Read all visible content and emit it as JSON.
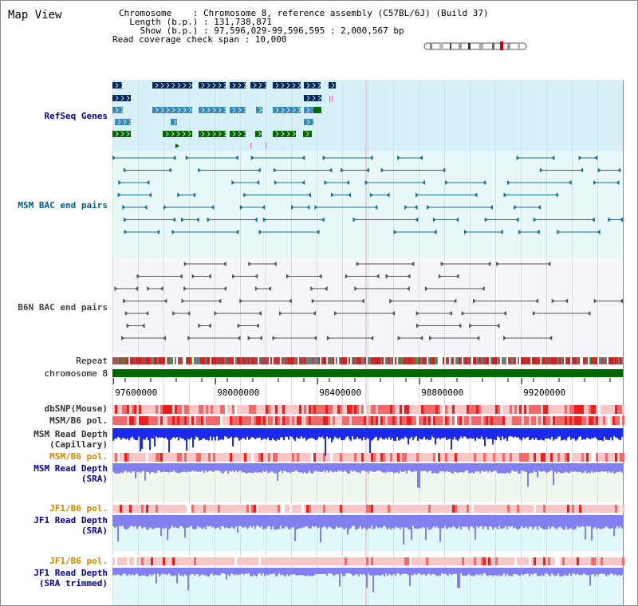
{
  "title": "Map View",
  "info": {
    "chromosome_line": "Chromosome    : Chromosome 8, reference assembly (C57BL/6J) (Build 37)",
    "length_line": "  Length (b.p.) : 131,738,871",
    "show_line": "    Show (b.p.) : 97,596,029-99,596,595 : 2,000,567 bp",
    "coverage_line": "Read coverage check span : 10,000"
  },
  "view": {
    "start": 97596029,
    "end": 99596595
  },
  "axis": {
    "ticks": [
      {
        "value": 97600000,
        "label": "97600000"
      },
      {
        "value": 98000000,
        "label": "98000000"
      },
      {
        "value": 98400000,
        "label": "98400000"
      },
      {
        "value": 98800000,
        "label": "98800000"
      },
      {
        "value": 99200000,
        "label": "99200000"
      }
    ]
  },
  "tracks": {
    "refseq": {
      "label": "RefSeq Genes",
      "color": "#000099"
    },
    "msm_bac": {
      "label": "MSM BAC end pairs",
      "color": "#006080"
    },
    "b6n_bac": {
      "label": "B6N BAC end pairs",
      "color": "#444444"
    },
    "repeat": {
      "label": "Repeat",
      "color": "#000000"
    },
    "chromosome": {
      "label": "chromosome 8",
      "color": "#000000"
    },
    "dbsnp": {
      "label": "dbSNP(Mouse)",
      "color": "#333333"
    },
    "msm_b6_pol_cap": {
      "label": "MSM/B6 pol.",
      "color": "#333333"
    },
    "msm_depth_cap": {
      "label_line1": "MSM Read Depth",
      "label_line2": "(Capillary)",
      "color": "#333333"
    },
    "msm_b6_pol_sra": {
      "label": "MSM/B6 pol.",
      "color": "#cc8800"
    },
    "msm_depth_sra": {
      "label_line1": "MSM Read Depth",
      "label_line2": "(SRA)",
      "color": "#000099"
    },
    "jf1_b6_pol": {
      "label": "JF1/B6 pol.",
      "color": "#cc8800"
    },
    "jf1_depth_sra": {
      "label_line1": "JF1 Read Depth",
      "label_line2": "(SRA)",
      "color": "#000099"
    },
    "jf1_b6_pol_trim": {
      "label": "JF1/B6 pol.",
      "color": "#cc8800"
    },
    "jf1_depth_trim": {
      "label_line1": "JF1 Read Depth",
      "label_line2": "(SRA trimmed)",
      "color": "#000099"
    }
  },
  "colors": {
    "refseq_bg": "#d8f0f8",
    "bac_bg": "#e8f8f8",
    "b6n_bg": "#f4f6fb",
    "gene_navy": "#002a5c",
    "gene_blue": "#3a8ab8",
    "gene_green": "#006600",
    "chromosome_bar": "#006600",
    "depth_capillary": "#1a2aee",
    "depth_sra": "#8080f0",
    "depth_bg": "#eef8ee",
    "depth_bg2": "#e0f8f8",
    "pol_light": "#f8c8c8",
    "pol_dark": "#e82020"
  }
}
